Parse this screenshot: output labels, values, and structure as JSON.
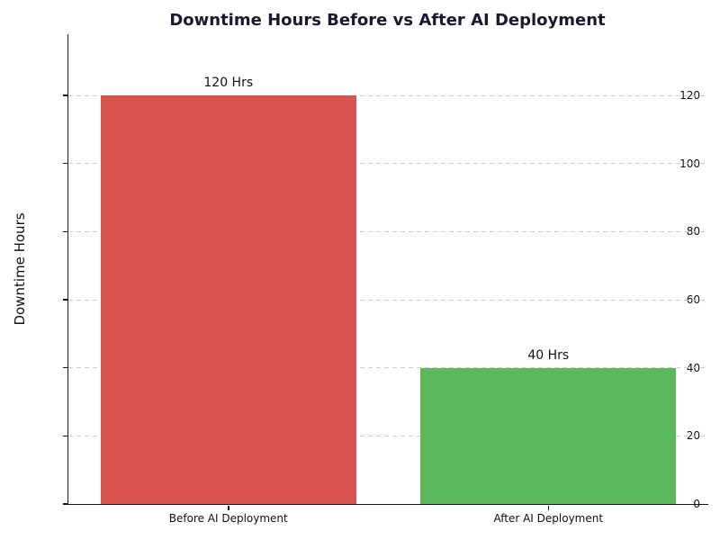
{
  "page": {
    "background_color": "#ffffff"
  },
  "chart_data": {
    "type": "bar",
    "title": "Downtime Hours Before vs After AI Deployment",
    "title_color": "#1a1a2e",
    "xlabel": "",
    "ylabel": "Downtime Hours",
    "categories": [
      "Before AI Deployment",
      "After AI Deployment"
    ],
    "values": [
      120,
      40
    ],
    "bar_value_labels": [
      "120 Hrs",
      "40 Hrs"
    ],
    "bar_colors": [
      "#d9534f",
      "#5cb85c"
    ],
    "yticks": [
      0,
      20,
      40,
      60,
      80,
      100,
      120
    ],
    "ylim": [
      0,
      138
    ],
    "grid": "horizontal dashed",
    "grid_color": "#cdcdcd",
    "legend_position": "none",
    "bar_width_fraction": 0.8
  }
}
